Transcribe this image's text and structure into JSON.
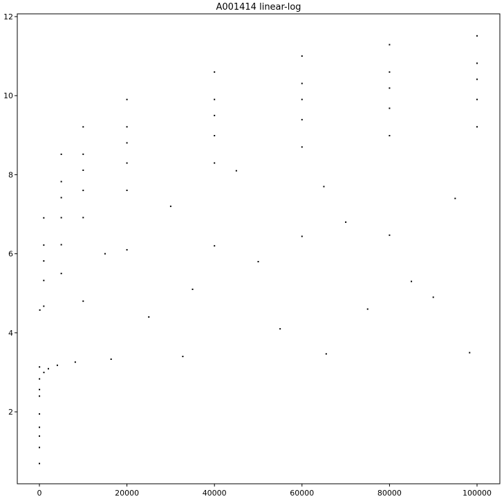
{
  "chart_data": {
    "type": "scatter",
    "title": "A001414 linear-log",
    "color": "#000000",
    "xlim": [
      -5055,
      105213
    ],
    "ylim": [
      0.18,
      12.07
    ],
    "xticks": [
      0,
      20000,
      40000,
      60000,
      80000,
      100000
    ],
    "yticks": [
      2,
      4,
      6,
      8,
      10,
      12
    ],
    "x": [
      2,
      3,
      4,
      5,
      7,
      11,
      13,
      17,
      23,
      97,
      1000,
      5000,
      10000,
      20000,
      40000,
      60000,
      80000,
      100000,
      1000,
      5000,
      10000,
      20000,
      40000,
      60000,
      80000,
      100000,
      1000,
      5000,
      10000,
      20000,
      40000,
      60000,
      80000,
      100000,
      1000,
      5000,
      10000,
      20000,
      40000,
      60000,
      80000,
      100000,
      1000,
      5000,
      10000,
      20000,
      40000,
      60000,
      80000,
      100000,
      1024,
      2048,
      4096,
      8192,
      16384,
      32768,
      65536,
      98304,
      30000,
      50000,
      70000,
      90000,
      45000,
      25000,
      65000,
      85000,
      15000,
      35000,
      55000,
      75000,
      95000,
      10000,
      5000,
      40000,
      60000,
      80000,
      20000
    ],
    "y": [
      0.693,
      1.099,
      1.386,
      1.609,
      1.946,
      2.398,
      2.565,
      2.833,
      3.135,
      4.575,
      6.908,
      8.517,
      9.21,
      9.903,
      10.597,
      11.002,
      11.29,
      11.513,
      6.219,
      7.825,
      8.518,
      9.211,
      9.904,
      10.309,
      10.597,
      10.82,
      5.818,
      7.42,
      8.113,
      8.805,
      9.498,
      9.904,
      10.191,
      10.414,
      5.323,
      6.913,
      7.603,
      8.295,
      8.988,
      9.393,
      9.681,
      9.904,
      4.673,
      6.229,
      6.915,
      7.604,
      8.296,
      8.701,
      8.988,
      9.211,
      2.996,
      3.091,
      3.178,
      3.258,
      3.332,
      3.401,
      3.466,
      3.497,
      7.2,
      5.8,
      6.8,
      4.9,
      8.1,
      4.4,
      7.7,
      5.3,
      6.0,
      5.1,
      4.1,
      4.6,
      7.4,
      4.8,
      5.5,
      6.2,
      6.44,
      6.47,
      6.1
    ]
  }
}
